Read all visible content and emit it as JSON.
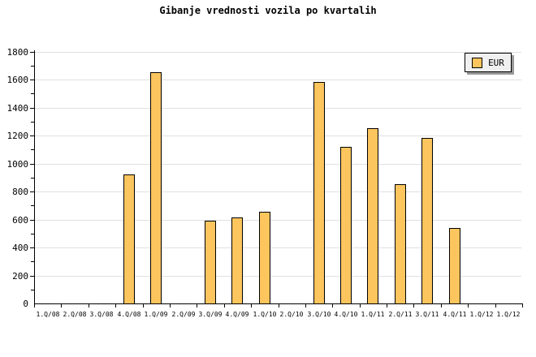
{
  "title": "Gibanje vrednosti vozila po kvartalih",
  "legend": {
    "label": "EUR"
  },
  "colors": {
    "bar_fill": "#fcc55e",
    "bar_border": "#000000",
    "gridline": "#e0e0e0",
    "axis": "#000000",
    "legend_bg": "#f0f0f0",
    "legend_shadow": "#999999",
    "background": "#ffffff"
  },
  "chart_data": {
    "type": "bar",
    "title": "Gibanje vrednosti vozila po kvartalih",
    "categories": [
      "1.Q/08",
      "2.Q/08",
      "3.Q/08",
      "4.Q/08",
      "1.Q/09",
      "2.Q/09",
      "3.Q/09",
      "4.Q/09",
      "1.Q/10",
      "2.Q/10",
      "3.Q/10",
      "4.Q/10",
      "1.Q/11",
      "2.Q/11",
      "3.Q/11",
      "4.Q/11",
      "1.Q/12",
      "1.Q/12"
    ],
    "series": [
      {
        "name": "EUR",
        "values": [
          null,
          null,
          null,
          920,
          1655,
          null,
          590,
          615,
          655,
          null,
          1585,
          1120,
          1255,
          855,
          1185,
          540,
          null,
          null
        ]
      }
    ],
    "xlabel": "",
    "ylabel": "",
    "ylim": [
      0,
      1800
    ],
    "ytick_major": 200,
    "ytick_minor": 100,
    "yticklabels": [
      "0",
      "200",
      "400",
      "600",
      "800",
      "1000",
      "1200",
      "1400",
      "1600",
      "1800"
    ],
    "grid": true,
    "legend_position": "top-right"
  }
}
